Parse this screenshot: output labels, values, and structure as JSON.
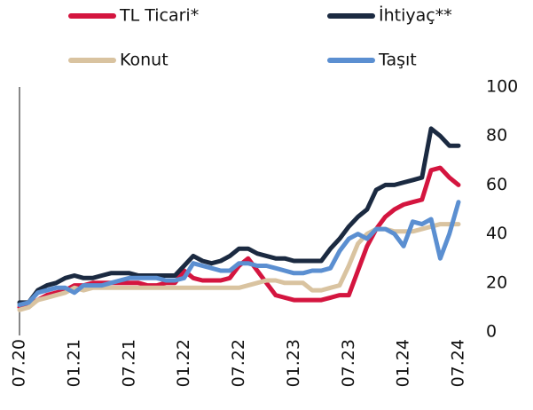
{
  "chart_data": {
    "type": "line",
    "categories": [
      "07.20",
      null,
      null,
      null,
      null,
      null,
      "01.21",
      null,
      null,
      null,
      null,
      null,
      "07.21",
      null,
      null,
      null,
      null,
      null,
      "01.22",
      null,
      null,
      null,
      null,
      null,
      "07.22",
      null,
      null,
      null,
      null,
      null,
      "01.23",
      null,
      null,
      null,
      null,
      null,
      "07.23",
      null,
      null,
      null,
      null,
      null,
      "01.24",
      null,
      null,
      null,
      null,
      null,
      "07.24"
    ],
    "series": [
      {
        "name": "TL Ticari*",
        "color": "#d4153f",
        "values": [
          10,
          11,
          13,
          15,
          16,
          17,
          19,
          19,
          20,
          20,
          20,
          20,
          20,
          20,
          19,
          19,
          20,
          20,
          25,
          22,
          21,
          21,
          21,
          22,
          27,
          30,
          25,
          20,
          15,
          14,
          13,
          13,
          13,
          13,
          14,
          15,
          15,
          25,
          35,
          42,
          47,
          50,
          52,
          53,
          54,
          66,
          67,
          63,
          60
        ]
      },
      {
        "name": "İhtiyaç**",
        "color": "#1b2a41",
        "values": [
          12,
          12,
          17,
          19,
          20,
          22,
          23,
          22,
          22,
          23,
          24,
          24,
          24,
          23,
          23,
          23,
          23,
          23,
          27,
          31,
          29,
          28,
          29,
          31,
          34,
          34,
          32,
          31,
          30,
          30,
          29,
          29,
          29,
          29,
          34,
          38,
          43,
          47,
          50,
          58,
          60,
          60,
          61,
          62,
          63,
          83,
          80,
          76,
          76
        ]
      },
      {
        "name": "Konut",
        "color": "#d9c3a0",
        "values": [
          9,
          10,
          13,
          14,
          15,
          16,
          18,
          17,
          18,
          18,
          18,
          18,
          18,
          18,
          18,
          18,
          18,
          18,
          18,
          18,
          18,
          18,
          18,
          18,
          18,
          19,
          20,
          21,
          21,
          20,
          20,
          20,
          17,
          17,
          18,
          19,
          27,
          36,
          40,
          42,
          42,
          41,
          41,
          41,
          42,
          43,
          44,
          44,
          44
        ]
      },
      {
        "name": "Taşıt",
        "color": "#5b8fd1",
        "values": [
          11,
          12,
          16,
          17,
          18,
          18,
          16,
          19,
          19,
          19,
          20,
          21,
          22,
          22,
          22,
          22,
          21,
          21,
          22,
          28,
          27,
          26,
          25,
          25,
          28,
          28,
          27,
          27,
          26,
          25,
          24,
          24,
          25,
          25,
          26,
          33,
          38,
          40,
          38,
          42,
          42,
          40,
          35,
          45,
          44,
          46,
          30,
          40,
          53
        ]
      }
    ],
    "ylim": [
      0,
      100
    ],
    "yticks": [
      0,
      20,
      40,
      60,
      80,
      100
    ],
    "grid": false,
    "legend": "top"
  }
}
